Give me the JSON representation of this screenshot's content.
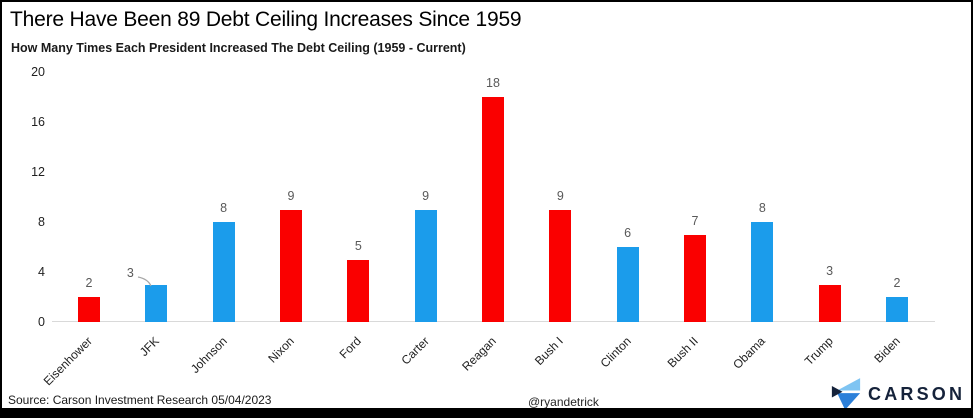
{
  "title": "There Have Been 89 Debt Ceiling Increases Since 1959",
  "subtitle": "How Many Times Each President Increased The Debt Ceiling (1959 - Current)",
  "footer": {
    "source": "Source: Carson Investment Research 05/04/2023",
    "handle": "@ryandetrick",
    "brand": "CARSON"
  },
  "colors": {
    "baseline": "#D9D9D9",
    "value_label": "#595959",
    "axis_label": "#1F1F1F",
    "callout_line": "#A6A6A6",
    "brand_navy": "#15223A",
    "brand_light_blue": "#7FC4F2",
    "brand_mid_blue": "#2C80D9",
    "frame": "#000000"
  },
  "chart_data": {
    "type": "bar",
    "title": "There Have Been 89 Debt Ceiling Increases Since 1959",
    "subtitle": "How Many Times Each President Increased The Debt Ceiling (1959 - Current)",
    "categories": [
      "Eisenhower",
      "JFK",
      "Johnson",
      "Nixon",
      "Ford",
      "Carter",
      "Reagan",
      "Bush I",
      "Clinton",
      "Bush II",
      "Obama",
      "Trump",
      "Biden"
    ],
    "values": [
      2,
      3,
      8,
      9,
      5,
      9,
      18,
      9,
      6,
      7,
      8,
      3,
      2
    ],
    "parties": [
      "R",
      "D",
      "D",
      "R",
      "R",
      "D",
      "R",
      "R",
      "D",
      "R",
      "D",
      "R",
      "D"
    ],
    "bar_color_by_party": {
      "R": "#FA0000",
      "D": "#1B9CEB"
    },
    "total_increases": 89,
    "ylim": [
      0,
      20
    ],
    "yticks": [
      0,
      4,
      8,
      12,
      16,
      20
    ],
    "gridlines": "baseline-only",
    "value_labels": true,
    "jfk_label_callout": true,
    "xlabel": "",
    "ylabel": ""
  }
}
